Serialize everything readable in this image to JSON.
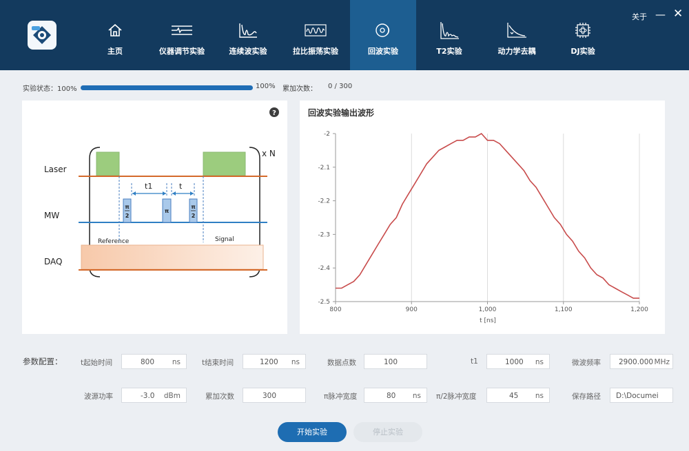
{
  "nav": {
    "tabs": [
      {
        "label": "主页",
        "icon": "home-icon"
      },
      {
        "label": "仪器调节实验",
        "icon": "instrument-icon"
      },
      {
        "label": "连续波实验",
        "icon": "cw-wave-icon"
      },
      {
        "label": "拉比振荡实验",
        "icon": "rabi-wave-icon"
      },
      {
        "label": "回波实验",
        "icon": "echo-icon",
        "active": true
      },
      {
        "label": "T2实验",
        "icon": "t2-decay-icon"
      },
      {
        "label": "动力学去耦",
        "icon": "decoupling-icon"
      },
      {
        "label": "DJ实验",
        "icon": "chip-icon"
      }
    ],
    "about": "关于",
    "minimize": "—",
    "close": "✕"
  },
  "status": {
    "label": "实验状态：100%",
    "progress": 1.0,
    "progress_text": "100%",
    "count_label": "累加次数：",
    "count_value": "0 / 300"
  },
  "sequence": {
    "help": "?",
    "laser": "Laser",
    "mw": "MW",
    "daq": "DAQ",
    "repeat": "x N",
    "t1": "t1",
    "t": "t",
    "pi": "π",
    "two": "2",
    "reference": "Reference",
    "signal": "Signal"
  },
  "chart": {
    "title": "回波实验输出波形"
  },
  "chart_data": {
    "type": "line",
    "title": "回波实验输出波形",
    "xlabel": "t [ns]",
    "ylabel": "",
    "xlim": [
      800,
      1200
    ],
    "ylim": [
      -2.5,
      -2.0
    ],
    "xticks": [
      "800",
      "900",
      "1,000",
      "1,100",
      "1,200"
    ],
    "yticks": [
      "-2",
      "-2.1",
      "-2.2",
      "-2.3",
      "-2.4",
      "-2.5"
    ],
    "grid": "vertical",
    "color": "#c84b4b",
    "x": [
      800,
      808,
      816,
      824,
      832,
      840,
      848,
      856,
      864,
      872,
      880,
      888,
      896,
      904,
      912,
      920,
      928,
      936,
      944,
      952,
      960,
      968,
      976,
      984,
      992,
      1000,
      1008,
      1016,
      1024,
      1032,
      1040,
      1048,
      1056,
      1064,
      1072,
      1080,
      1088,
      1096,
      1104,
      1112,
      1120,
      1128,
      1136,
      1144,
      1152,
      1160,
      1168,
      1176,
      1184,
      1192,
      1200
    ],
    "y": [
      -2.46,
      -2.46,
      -2.45,
      -2.44,
      -2.42,
      -2.39,
      -2.36,
      -2.33,
      -2.3,
      -2.27,
      -2.25,
      -2.21,
      -2.18,
      -2.15,
      -2.12,
      -2.09,
      -2.07,
      -2.05,
      -2.04,
      -2.03,
      -2.02,
      -2.02,
      -2.01,
      -2.01,
      -2.0,
      -2.02,
      -2.02,
      -2.03,
      -2.05,
      -2.07,
      -2.09,
      -2.11,
      -2.14,
      -2.16,
      -2.19,
      -2.22,
      -2.25,
      -2.27,
      -2.3,
      -2.32,
      -2.35,
      -2.37,
      -2.4,
      -2.42,
      -2.43,
      -2.45,
      -2.46,
      -2.47,
      -2.48,
      -2.49,
      -2.49
    ]
  },
  "params": {
    "section": "参数配置：",
    "fields": [
      {
        "label": "t起始时间",
        "value": "800",
        "unit": "ns"
      },
      {
        "label": "t结束时间",
        "value": "1200",
        "unit": "ns"
      },
      {
        "label": "数据点数",
        "value": "100",
        "unit": ""
      },
      {
        "label": "t1",
        "value": "1000",
        "unit": "ns"
      },
      {
        "label": "微波频率",
        "value": "2900.000",
        "unit": "MHz"
      },
      {
        "label": "波源功率",
        "value": "-3.0",
        "unit": "dBm"
      },
      {
        "label": "累加次数",
        "value": "300",
        "unit": ""
      },
      {
        "label": "π脉冲宽度",
        "value": "80",
        "unit": "ns"
      },
      {
        "label": "π/2脉冲宽度",
        "value": "45",
        "unit": "ns"
      },
      {
        "label": "保存路径",
        "value": "D:\\Documei",
        "unit": ""
      }
    ]
  },
  "buttons": {
    "start": "开始实验",
    "stop": "停止实验"
  },
  "colors": {
    "topbar": "#133a5e",
    "active_tab": "#1d5e91",
    "accent": "#1f6db5",
    "laser_line": "#d4692a",
    "mw_line": "#2f7fc4",
    "laser_pulse": "#9ccc7e",
    "curve": "#c84b4b"
  }
}
